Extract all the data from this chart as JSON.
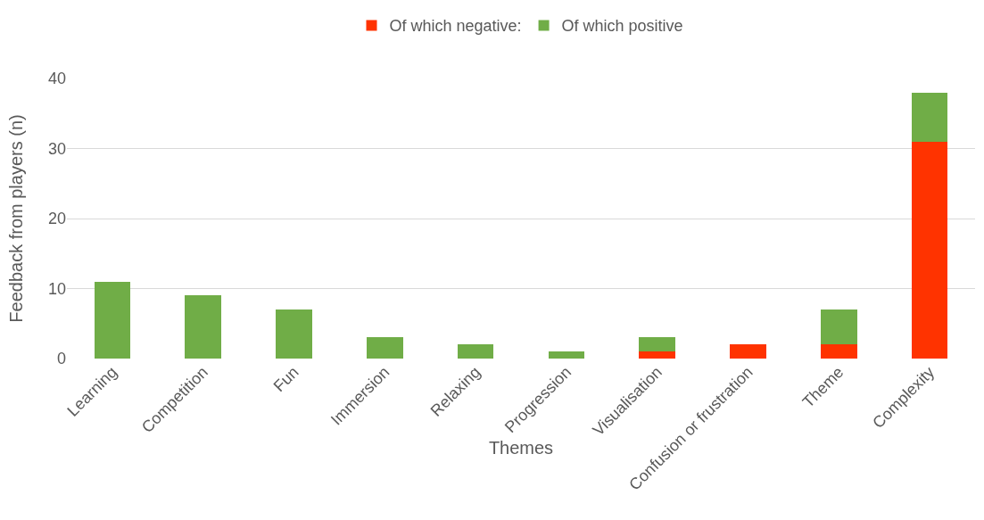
{
  "chart_data": {
    "type": "bar",
    "xlabel": "Themes",
    "ylabel": "Feedback from players (n)",
    "categories": [
      "Learning",
      "Competition",
      "Fun",
      "Immersion",
      "Relaxing",
      "Progression",
      "Visualisation",
      "Confusion or frustration",
      "Theme",
      "Complexity"
    ],
    "series": [
      {
        "name": "Of which negative:",
        "color": "#ff3300",
        "values": [
          0,
          0,
          0,
          0,
          0,
          0,
          1,
          2,
          2,
          31
        ]
      },
      {
        "name": "Of which positive",
        "color": "#70ad47",
        "values": [
          11,
          9,
          7,
          3,
          2,
          1,
          2,
          0,
          5,
          7
        ]
      }
    ],
    "stacked": true,
    "ylim": [
      0,
      40
    ],
    "yticks": [
      0,
      10,
      20,
      30,
      40
    ],
    "grid": "y",
    "legend": "top"
  }
}
